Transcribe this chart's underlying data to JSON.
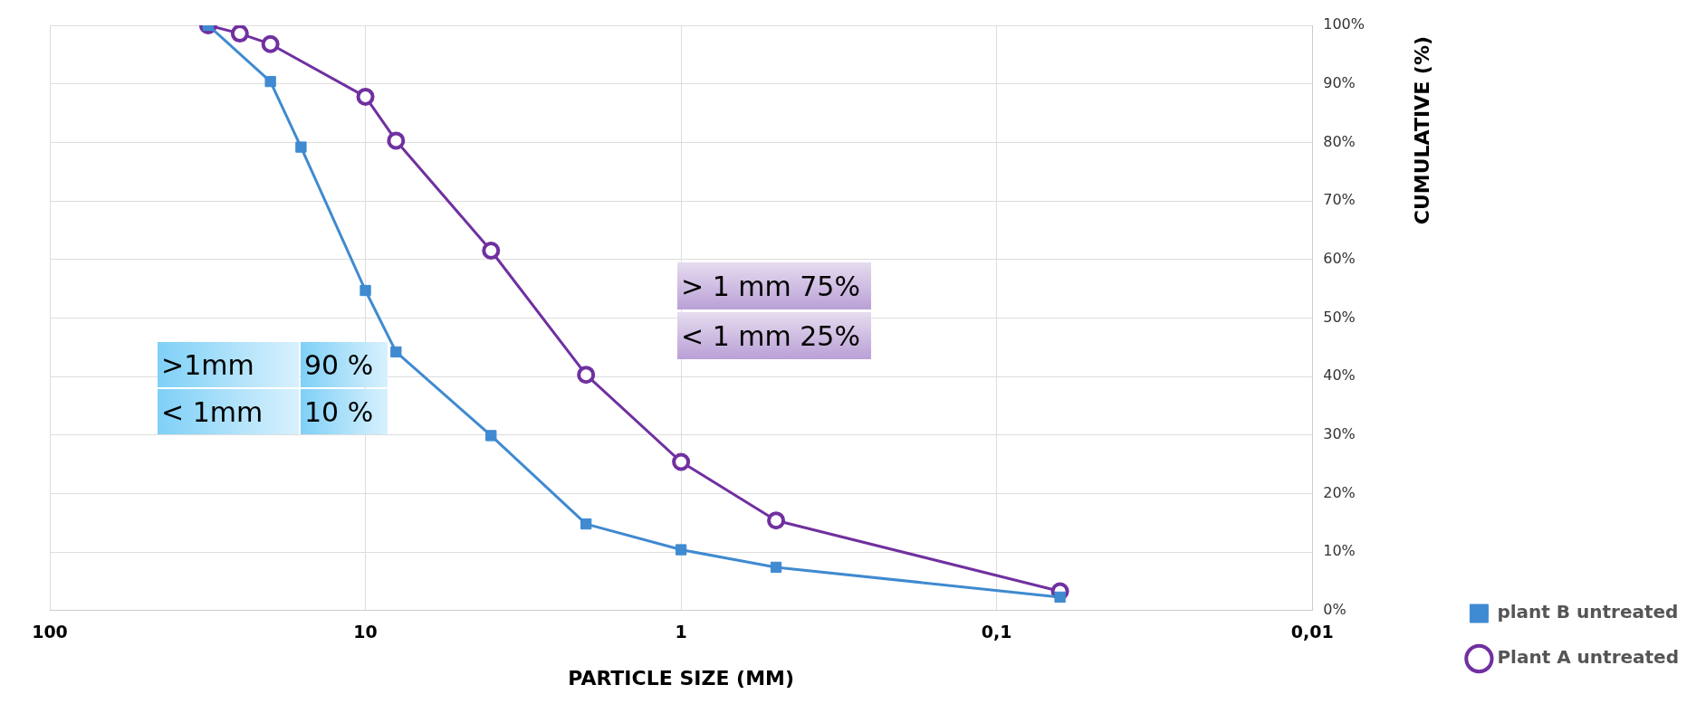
{
  "chart_data": {
    "type": "line",
    "xlabel": "PARTICLE SIZE (MM)",
    "ylabel": "CUMULATIVE (%)",
    "xlim": [
      100,
      0.01
    ],
    "xticks": [
      100,
      10,
      1,
      {
        "value": 0.1,
        "label": "0,1"
      },
      {
        "value": 0.01,
        "label": "0,01"
      }
    ],
    "ylim": [
      0,
      100
    ],
    "yticks": [
      {
        "value": 0,
        "label": "0%"
      },
      {
        "value": 10,
        "label": "10%"
      },
      {
        "value": 20,
        "label": "20%"
      },
      {
        "value": 30,
        "label": "30%"
      },
      {
        "value": 40,
        "label": "40%"
      },
      {
        "value": 50,
        "label": "50%"
      },
      {
        "value": 60,
        "label": "60%"
      },
      {
        "value": 70,
        "label": "70%"
      },
      {
        "value": 80,
        "label": "80%"
      },
      {
        "value": 90,
        "label": "90%"
      },
      {
        "value": 100,
        "label": "100%"
      }
    ],
    "log": "x",
    "grid": true,
    "legend": "right",
    "line_style": "solid",
    "series": [
      {
        "name": "plant B untreated",
        "color": "#3f8ad0",
        "marker": "square",
        "x": [
          31.5,
          20,
          16,
          10,
          8,
          4,
          2,
          1,
          0.5,
          0.063
        ],
        "values": [
          100,
          90.4,
          79.2,
          54.7,
          44.2,
          29.9,
          14.8,
          10.4,
          7.4,
          2.3
        ]
      },
      {
        "name": "Plant A untreated",
        "color": "#7030a0",
        "marker": "circle",
        "x": [
          31.5,
          25,
          20,
          10,
          8,
          4,
          2,
          1,
          0.5,
          0.063
        ],
        "values": [
          100,
          98.6,
          96.8,
          87.8,
          80.3,
          61.5,
          40.3,
          25.4,
          15.4,
          3.3
        ]
      }
    ],
    "annotations": [
      ">1mm",
      "90 %",
      "< 1mm",
      "10 %",
      "> 1 mm 75%",
      "< 1 mm 25%"
    ]
  }
}
